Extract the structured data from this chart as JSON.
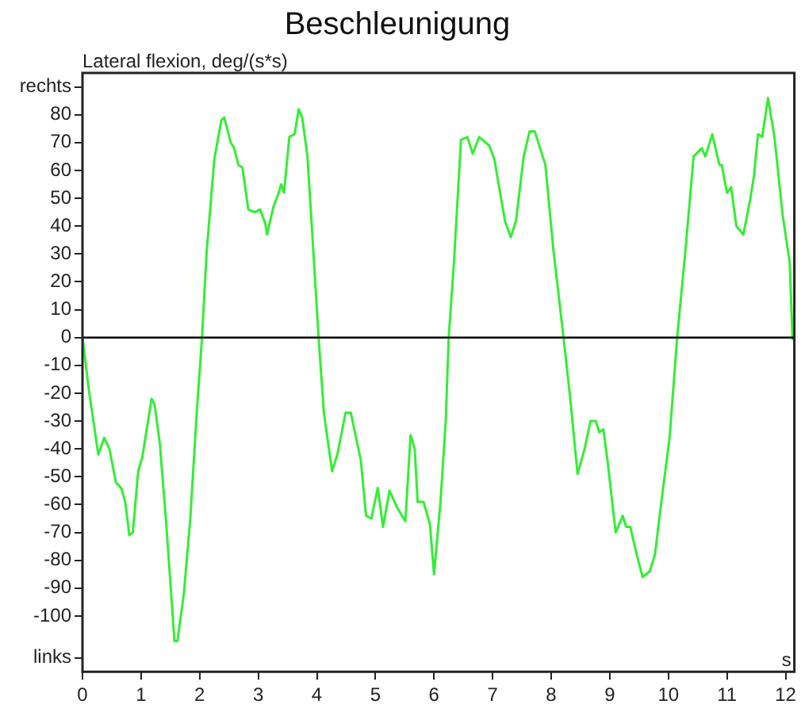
{
  "chart_data": {
    "type": "line",
    "title": "Beschleunigung",
    "ylabel": "Lateral flexion, deg/(s*s)",
    "xlabel": "s",
    "xlim": [
      0,
      12.15
    ],
    "xticks": [
      0,
      1,
      2,
      3,
      4,
      5,
      6,
      7,
      8,
      9,
      10,
      11,
      12
    ],
    "ylim": [
      -120,
      95
    ],
    "yticks": [
      {
        "value": -115,
        "label": "links"
      },
      -100,
      -90,
      -80,
      -70,
      -60,
      -50,
      -40,
      -30,
      -20,
      -10,
      0,
      10,
      20,
      30,
      40,
      50,
      60,
      70,
      80,
      {
        "value": 90,
        "label": "rechts"
      }
    ],
    "grid": false,
    "legend": false,
    "marker": "none",
    "line_style": "solid",
    "ref_lines": [
      {
        "axis": "y",
        "value": 0,
        "color": "#000000"
      }
    ],
    "series": [
      {
        "color": "#33ee33",
        "x": [
          0,
          0.11,
          0.27,
          0.37,
          0.46,
          0.57,
          0.66,
          0.73,
          0.8,
          0.86,
          0.95,
          1.02,
          1.18,
          1.23,
          1.32,
          1.43,
          1.57,
          1.62,
          1.73,
          1.84,
          1.95,
          2.04,
          2.12,
          2.25,
          2.37,
          2.42,
          2.53,
          2.59,
          2.66,
          2.73,
          2.83,
          2.94,
          3.03,
          3.12,
          3.15,
          3.26,
          3.35,
          3.39,
          3.44,
          3.53,
          3.62,
          3.69,
          3.75,
          3.84,
          3.94,
          4.03,
          4.12,
          4.26,
          4.35,
          4.49,
          4.58,
          4.67,
          4.75,
          4.84,
          4.93,
          5.04,
          5.13,
          5.24,
          5.37,
          5.51,
          5.6,
          5.67,
          5.72,
          5.82,
          5.93,
          6.0,
          6.11,
          6.2,
          6.25,
          6.34,
          6.46,
          6.57,
          6.66,
          6.77,
          6.94,
          7.03,
          7.21,
          7.31,
          7.4,
          7.53,
          7.63,
          7.72,
          7.9,
          8.04,
          8.21,
          8.32,
          8.45,
          8.57,
          8.67,
          8.76,
          8.82,
          8.89,
          8.96,
          9.1,
          9.22,
          9.28,
          9.35,
          9.46,
          9.56,
          9.68,
          9.77,
          9.88,
          10.02,
          10.15,
          10.29,
          10.43,
          10.57,
          10.63,
          10.75,
          10.87,
          10.91,
          11.0,
          11.07,
          11.16,
          11.28,
          11.4,
          11.46,
          11.53,
          11.6,
          11.7,
          11.81,
          11.95,
          12.07,
          12.12
        ],
        "values": [
          0,
          -19,
          -42,
          -36,
          -40,
          -52,
          -54,
          -59,
          -71,
          -70,
          -48,
          -43,
          -22,
          -24,
          -38,
          -67,
          -109,
          -109,
          -92,
          -65,
          -27,
          0,
          31,
          64,
          78,
          79,
          70,
          68,
          62,
          61,
          46,
          45,
          46,
          41,
          37,
          47,
          52,
          55,
          52,
          72,
          73,
          82,
          79,
          65,
          31,
          0,
          -27,
          -48,
          -42,
          -27,
          -27,
          -36,
          -44,
          -64,
          -65,
          -54,
          -68,
          -55,
          -61,
          -66,
          -35,
          -40,
          -59,
          -59,
          -67,
          -85,
          -59,
          -30,
          0,
          27,
          71,
          72,
          66,
          72,
          69,
          64,
          42,
          36,
          42,
          65,
          74,
          74,
          62,
          31,
          0,
          -21,
          -49,
          -40,
          -30,
          -30,
          -34,
          -33,
          -44,
          -70,
          -64,
          -68,
          -68,
          -78,
          -86,
          -84,
          -78,
          -59,
          -36,
          0,
          31,
          65,
          68,
          65,
          73,
          62,
          62,
          52,
          54,
          40,
          37,
          50,
          58,
          73,
          72,
          86,
          72,
          44,
          27,
          -1
        ]
      }
    ]
  }
}
